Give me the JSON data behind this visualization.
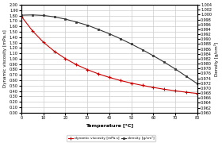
{
  "temperature": [
    0,
    5,
    10,
    15,
    20,
    25,
    30,
    35,
    40,
    45,
    50,
    55,
    60,
    65,
    70,
    75,
    80
  ],
  "viscosity": [
    1.787,
    1.519,
    1.307,
    1.138,
    1.002,
    0.89,
    0.798,
    0.719,
    0.653,
    0.596,
    0.547,
    0.505,
    0.467,
    0.433,
    0.404,
    0.378,
    0.355
  ],
  "density": [
    0.9998,
    0.9999,
    0.9997,
    0.9991,
    0.9982,
    0.997,
    0.9957,
    0.994,
    0.9922,
    0.9902,
    0.988,
    0.9857,
    0.9832,
    0.9806,
    0.9778,
    0.9748,
    0.9718
  ],
  "visc_color": "#cc0000",
  "dens_color": "#333333",
  "xlabel": "Temperature [°C]",
  "ylabel_left": "Dynamic viscosity [mPa.s]",
  "ylabel_right": "Density [g/cm³]",
  "xlim": [
    0,
    80
  ],
  "ylim_left": [
    0.0,
    2.0
  ],
  "ylim_right": [
    0.96,
    1.004
  ],
  "xticks": [
    0,
    10,
    20,
    30,
    40,
    50,
    60,
    70,
    80
  ],
  "yticks_left": [
    0.0,
    0.1,
    0.2,
    0.3,
    0.4,
    0.5,
    0.6,
    0.7,
    0.8,
    0.9,
    1.0,
    1.1,
    1.2,
    1.3,
    1.4,
    1.5,
    1.6,
    1.7,
    1.8,
    1.9,
    2.0
  ],
  "yticks_right": [
    0.96,
    0.962,
    0.964,
    0.966,
    0.968,
    0.97,
    0.972,
    0.974,
    0.976,
    0.978,
    0.98,
    0.982,
    0.984,
    0.986,
    0.988,
    0.99,
    0.992,
    0.994,
    0.996,
    0.998,
    1.0,
    1.002,
    1.004
  ],
  "legend_visc": "dynamic viscosity [mPa.s]",
  "legend_dens": "density [g/cm³]",
  "bg_color": "#ffffff",
  "grid_color": "#cccccc"
}
